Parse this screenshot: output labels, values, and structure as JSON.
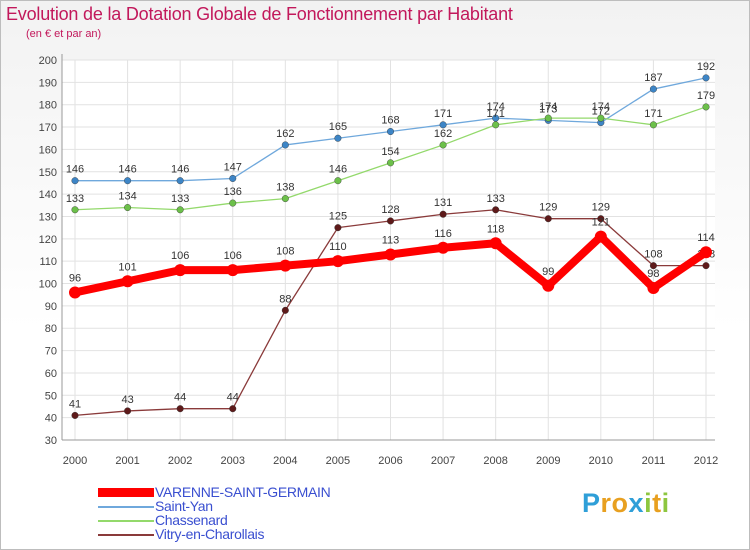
{
  "chart_data": {
    "type": "line",
    "title": "Evolution de la Dotation Globale de Fonctionnement par Habitant",
    "subtitle": "(en € et par an)",
    "xlabel": "",
    "ylabel": "",
    "ylim": [
      30,
      200
    ],
    "yticks": [
      30,
      40,
      50,
      60,
      70,
      80,
      90,
      100,
      110,
      120,
      130,
      140,
      150,
      160,
      170,
      180,
      190,
      200
    ],
    "categories": [
      "2000",
      "2001",
      "2002",
      "2003",
      "2004",
      "2005",
      "2006",
      "2007",
      "2008",
      "2009",
      "2010",
      "2011",
      "2012"
    ],
    "grid": true,
    "legend_position": "bottom-left",
    "series": [
      {
        "name": "Saint-Yan",
        "color": "#6fa8dc",
        "marker": "#3d85c6",
        "values": [
          146,
          146,
          146,
          147,
          162,
          165,
          168,
          171,
          174,
          173,
          172,
          187,
          192
        ]
      },
      {
        "name": "Chassenard",
        "color": "#93d96b",
        "marker": "#6cc04a",
        "values": [
          133,
          134,
          133,
          136,
          138,
          146,
          154,
          162,
          171,
          174,
          174,
          171,
          179
        ]
      },
      {
        "name": "Vitry-en-Charollais",
        "color": "#8a3a3a",
        "marker": "#5e1a1a",
        "values": [
          41,
          43,
          44,
          44,
          88,
          125,
          128,
          131,
          133,
          129,
          129,
          108,
          108
        ]
      },
      {
        "name": "VARENNE-SAINT-GERMAIN",
        "color": "#ff0000",
        "marker": "#ff0000",
        "values": [
          96,
          101,
          106,
          106,
          108,
          110,
          113,
          116,
          118,
          99,
          121,
          98,
          114
        ]
      }
    ],
    "legend": [
      {
        "name": "VARENNE-SAINT-GERMAIN",
        "color": "#ff0000"
      },
      {
        "name": "Saint-Yan",
        "color": "#6fa8dc"
      },
      {
        "name": "Chassenard",
        "color": "#93d96b"
      },
      {
        "name": "Vitry-en-Charollais",
        "color": "#8a3a3a"
      }
    ]
  },
  "logo": {
    "letters": [
      "P",
      "r",
      "o",
      "x",
      "i",
      "t",
      "i"
    ],
    "colors": [
      "#2f9fd8",
      "#e8a020",
      "#e8a020",
      "#2f9fd8",
      "#8dc63f",
      "#e8a020",
      "#8dc63f"
    ]
  }
}
